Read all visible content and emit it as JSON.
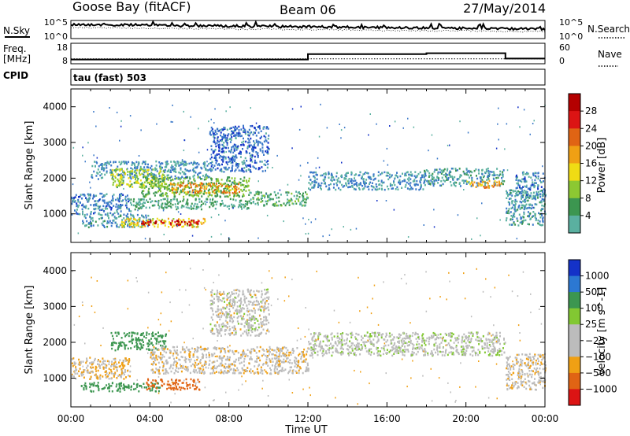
{
  "header": {
    "site": "Goose Bay (fitACF)",
    "beam": "Beam 06",
    "date": "27/May/2014"
  },
  "labels": {
    "nsky": "N.Sky",
    "nsearch": "N.Search",
    "freq_line1": "Freq.",
    "freq_line2": "[MHz]",
    "nave": "Nave",
    "cpid": "CPID",
    "tau": "tau (fast) 503"
  },
  "noise_panel": {
    "left_ticks": [
      "10^5",
      "10^0"
    ],
    "right_ticks": [
      "10^5",
      "10^0"
    ]
  },
  "freq_panel": {
    "left_ticks": [
      "18",
      "8"
    ],
    "right_ticks": [
      "60",
      "0"
    ],
    "freq_mhz": [
      {
        "t": 0,
        "v": 10.2
      },
      {
        "t": 12,
        "v": 10.2
      }
    ],
    "nave": [
      {
        "t": 0,
        "v": 11
      },
      {
        "t": 12,
        "v": 11
      },
      {
        "t": 12,
        "v": 28
      },
      {
        "t": 18,
        "v": 28
      },
      {
        "t": 18,
        "v": 31
      },
      {
        "t": 22,
        "v": 31
      },
      {
        "t": 22,
        "v": 14
      },
      {
        "t": 24,
        "v": 14
      }
    ]
  },
  "colors": {
    "power": [
      "#1432c8",
      "#3a78c8",
      "#5ab0a0",
      "#3c9650",
      "#8cc832",
      "#f0dc14",
      "#f0a014",
      "#e06414",
      "#dc1414",
      "#b40000"
    ],
    "velocity": [
      "#1432c8",
      "#2c78d2",
      "#3c9650",
      "#82c832",
      "#bcbcbc",
      "#bcbcbc",
      "#f0a014",
      "#e06414",
      "#dc1414",
      "#b40000"
    ]
  },
  "chart_data": [
    {
      "type": "heatmap",
      "panel": "power",
      "ylabel": "Slant Range [km]",
      "ylim": [
        200,
        4500
      ],
      "y_ticks": [
        1000,
        2000,
        3000,
        4000
      ],
      "x_ticks": [
        "00:00",
        "04:00",
        "08:00",
        "12:00",
        "16:00",
        "20:00",
        "00:00"
      ],
      "colorbar": {
        "label": "Power [dB]",
        "ticks": [
          "4",
          "8",
          "12",
          "16",
          "20",
          "24",
          "28"
        ],
        "range": [
          0,
          30
        ]
      },
      "bands": [
        {
          "t": [
            0,
            3
          ],
          "r": [
            1000,
            1600
          ],
          "v": 5
        },
        {
          "t": [
            0.5,
            4
          ],
          "r": [
            650,
            1000
          ],
          "v": 7
        },
        {
          "t": [
            1,
            7
          ],
          "r": [
            2000,
            2500
          ],
          "v": 6
        },
        {
          "t": [
            2,
            4.8
          ],
          "r": [
            1750,
            2300
          ],
          "v": 14
        },
        {
          "t": [
            3.5,
            9
          ],
          "r": [
            1500,
            2050
          ],
          "v": 12
        },
        {
          "t": [
            5,
            8.5
          ],
          "r": [
            1600,
            1900
          ],
          "v": 20
        },
        {
          "t": [
            2.5,
            6.8
          ],
          "r": [
            650,
            900
          ],
          "v": 17
        },
        {
          "t": [
            3.5,
            6.5
          ],
          "r": [
            700,
            850
          ],
          "v": 27
        },
        {
          "t": [
            3,
            9
          ],
          "r": [
            1150,
            1450
          ],
          "v": 9
        },
        {
          "t": [
            9,
            12
          ],
          "r": [
            1250,
            1650
          ],
          "v": 10
        },
        {
          "t": [
            7,
            10
          ],
          "r": [
            2200,
            3500
          ],
          "v": 4
        },
        {
          "t": [
            12,
            17.8
          ],
          "r": [
            1700,
            2200
          ],
          "v": 6
        },
        {
          "t": [
            17.8,
            21.9
          ],
          "r": [
            1800,
            2300
          ],
          "v": 7
        },
        {
          "t": [
            20,
            21.8
          ],
          "r": [
            1750,
            1950
          ],
          "v": 19
        },
        {
          "t": [
            22,
            24
          ],
          "r": [
            700,
            1700
          ],
          "v": 7
        },
        {
          "t": [
            22.5,
            24
          ],
          "r": [
            1500,
            2200
          ],
          "v": 5
        }
      ]
    },
    {
      "type": "heatmap",
      "panel": "velocity",
      "ylabel": "Slant Range [km]",
      "ylim": [
        200,
        4500
      ],
      "y_ticks": [
        1000,
        2000,
        3000,
        4000
      ],
      "x_ticks": [
        "00:00",
        "04:00",
        "08:00",
        "12:00",
        "16:00",
        "20:00",
        "00:00"
      ],
      "xlabel": "Time UT",
      "colorbar": {
        "label": "Velocity [m s^-1]",
        "ticks": [
          "1000",
          "500",
          "100",
          "25",
          "−25",
          "−100",
          "−500",
          "−1000"
        ],
        "range": [
          -1000,
          1000
        ]
      },
      "bands": [
        {
          "t": [
            0,
            3
          ],
          "r": [
            1000,
            1600
          ],
          "v": -20
        },
        {
          "t": [
            0.5,
            4.5
          ],
          "r": [
            650,
            900
          ],
          "v": 150
        },
        {
          "t": [
            3.8,
            6.5
          ],
          "r": [
            700,
            1000
          ],
          "v": -250
        },
        {
          "t": [
            2,
            4.8
          ],
          "r": [
            1800,
            2300
          ],
          "v": 300
        },
        {
          "t": [
            4,
            12
          ],
          "r": [
            1150,
            1900
          ],
          "v": -10
        },
        {
          "t": [
            7,
            10
          ],
          "r": [
            2200,
            3500
          ],
          "v": 0
        },
        {
          "t": [
            12,
            22
          ],
          "r": [
            1650,
            2300
          ],
          "v": 10
        },
        {
          "t": [
            22,
            24
          ],
          "r": [
            700,
            1700
          ],
          "v": -10
        }
      ]
    }
  ]
}
